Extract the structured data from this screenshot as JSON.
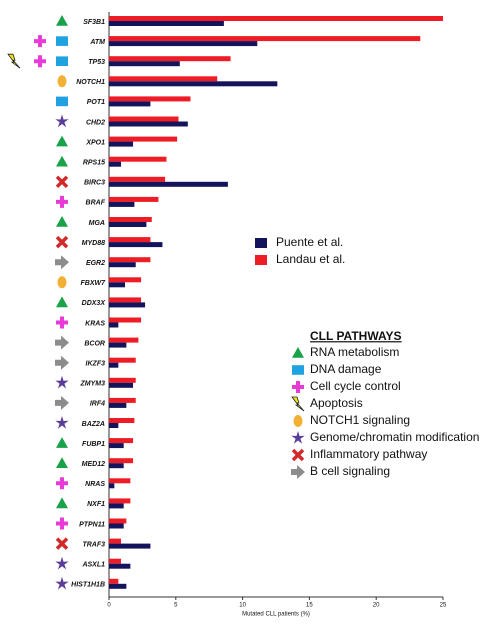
{
  "chart_data": {
    "type": "bar",
    "orientation": "horizontal",
    "x_label": "Mutated CLL patients (%)",
    "categories": [
      "SF3B1",
      "ATM",
      "TP53",
      "NOTCH1",
      "POT1",
      "CHD2",
      "XPO1",
      "RPS15",
      "BIRC3",
      "BRAF",
      "MGA",
      "MYD88",
      "EGR2",
      "FBXW7",
      "DDX3X",
      "KRAS",
      "BCOR",
      "IKZF3",
      "ZMYM3",
      "IRF4",
      "BAZ2A",
      "FUBP1",
      "MED12",
      "NRAS",
      "NXF1",
      "PTPN11",
      "TRAF3",
      "ASXL1",
      "HIST1H1B"
    ],
    "series": [
      {
        "name": "Puente et al.",
        "color": "#14145c",
        "values": [
          8.6,
          11.1,
          5.3,
          12.6,
          3.1,
          5.9,
          1.8,
          0.9,
          8.9,
          1.9,
          2.8,
          4.0,
          2.0,
          1.2,
          2.7,
          0.7,
          1.3,
          0.7,
          1.8,
          1.3,
          0.7,
          1.1,
          1.1,
          0.4,
          1.1,
          1.1,
          3.1,
          1.6,
          1.3
        ]
      },
      {
        "name": "Landau et al.",
        "color": "#ee1c24",
        "values": [
          25,
          23.3,
          9.1,
          8.1,
          6.1,
          5.2,
          5.1,
          4.3,
          4.2,
          3.7,
          3.2,
          3.1,
          3.1,
          2.4,
          2.4,
          2.4,
          2.2,
          2.0,
          2.0,
          2.0,
          1.9,
          1.8,
          1.8,
          1.6,
          1.6,
          1.3,
          0.9,
          0.9,
          0.7
        ]
      }
    ],
    "xlim": [
      0,
      25
    ],
    "xticks": [
      0,
      5,
      10,
      15,
      20,
      25
    ],
    "pathway_icons": [
      [
        "triangle"
      ],
      [
        "plus",
        "square"
      ],
      [
        "bolt",
        "plus",
        "square"
      ],
      [
        "circle"
      ],
      [
        "square"
      ],
      [
        "star"
      ],
      [
        "triangle"
      ],
      [
        "triangle"
      ],
      [
        "x"
      ],
      [
        "plus"
      ],
      [
        "triangle"
      ],
      [
        "x"
      ],
      [
        "arrow"
      ],
      [
        "circle"
      ],
      [
        "triangle"
      ],
      [
        "plus"
      ],
      [
        "arrow"
      ],
      [
        "arrow"
      ],
      [
        "star"
      ],
      [
        "arrow"
      ],
      [
        "star"
      ],
      [
        "triangle"
      ],
      [
        "triangle"
      ],
      [
        "plus"
      ],
      [
        "triangle"
      ],
      [
        "plus"
      ],
      [
        "x"
      ],
      [
        "star"
      ],
      [
        "star"
      ]
    ],
    "pathways": {
      "title": "CLL PATHWAYS",
      "items": [
        {
          "label": "RNA metabolism",
          "icon": "triangle",
          "color": "#1aa24a"
        },
        {
          "label": "DNA damage",
          "icon": "square",
          "color": "#1fa3e0"
        },
        {
          "label": "Cell cycle control",
          "icon": "plus",
          "color": "#e83ad6"
        },
        {
          "label": "Apoptosis",
          "icon": "bolt",
          "color": "#f2e21d"
        },
        {
          "label": "NOTCH1 signaling",
          "icon": "circle",
          "color": "#f2b134"
        },
        {
          "label": "Genome/chromatin modification",
          "icon": "star",
          "color": "#5a3d9a"
        },
        {
          "label": "Inflammatory pathway",
          "icon": "x",
          "color": "#d22a2a"
        },
        {
          "label": "B cell signaling",
          "icon": "arrow",
          "color": "#8c8c8c"
        }
      ]
    }
  }
}
